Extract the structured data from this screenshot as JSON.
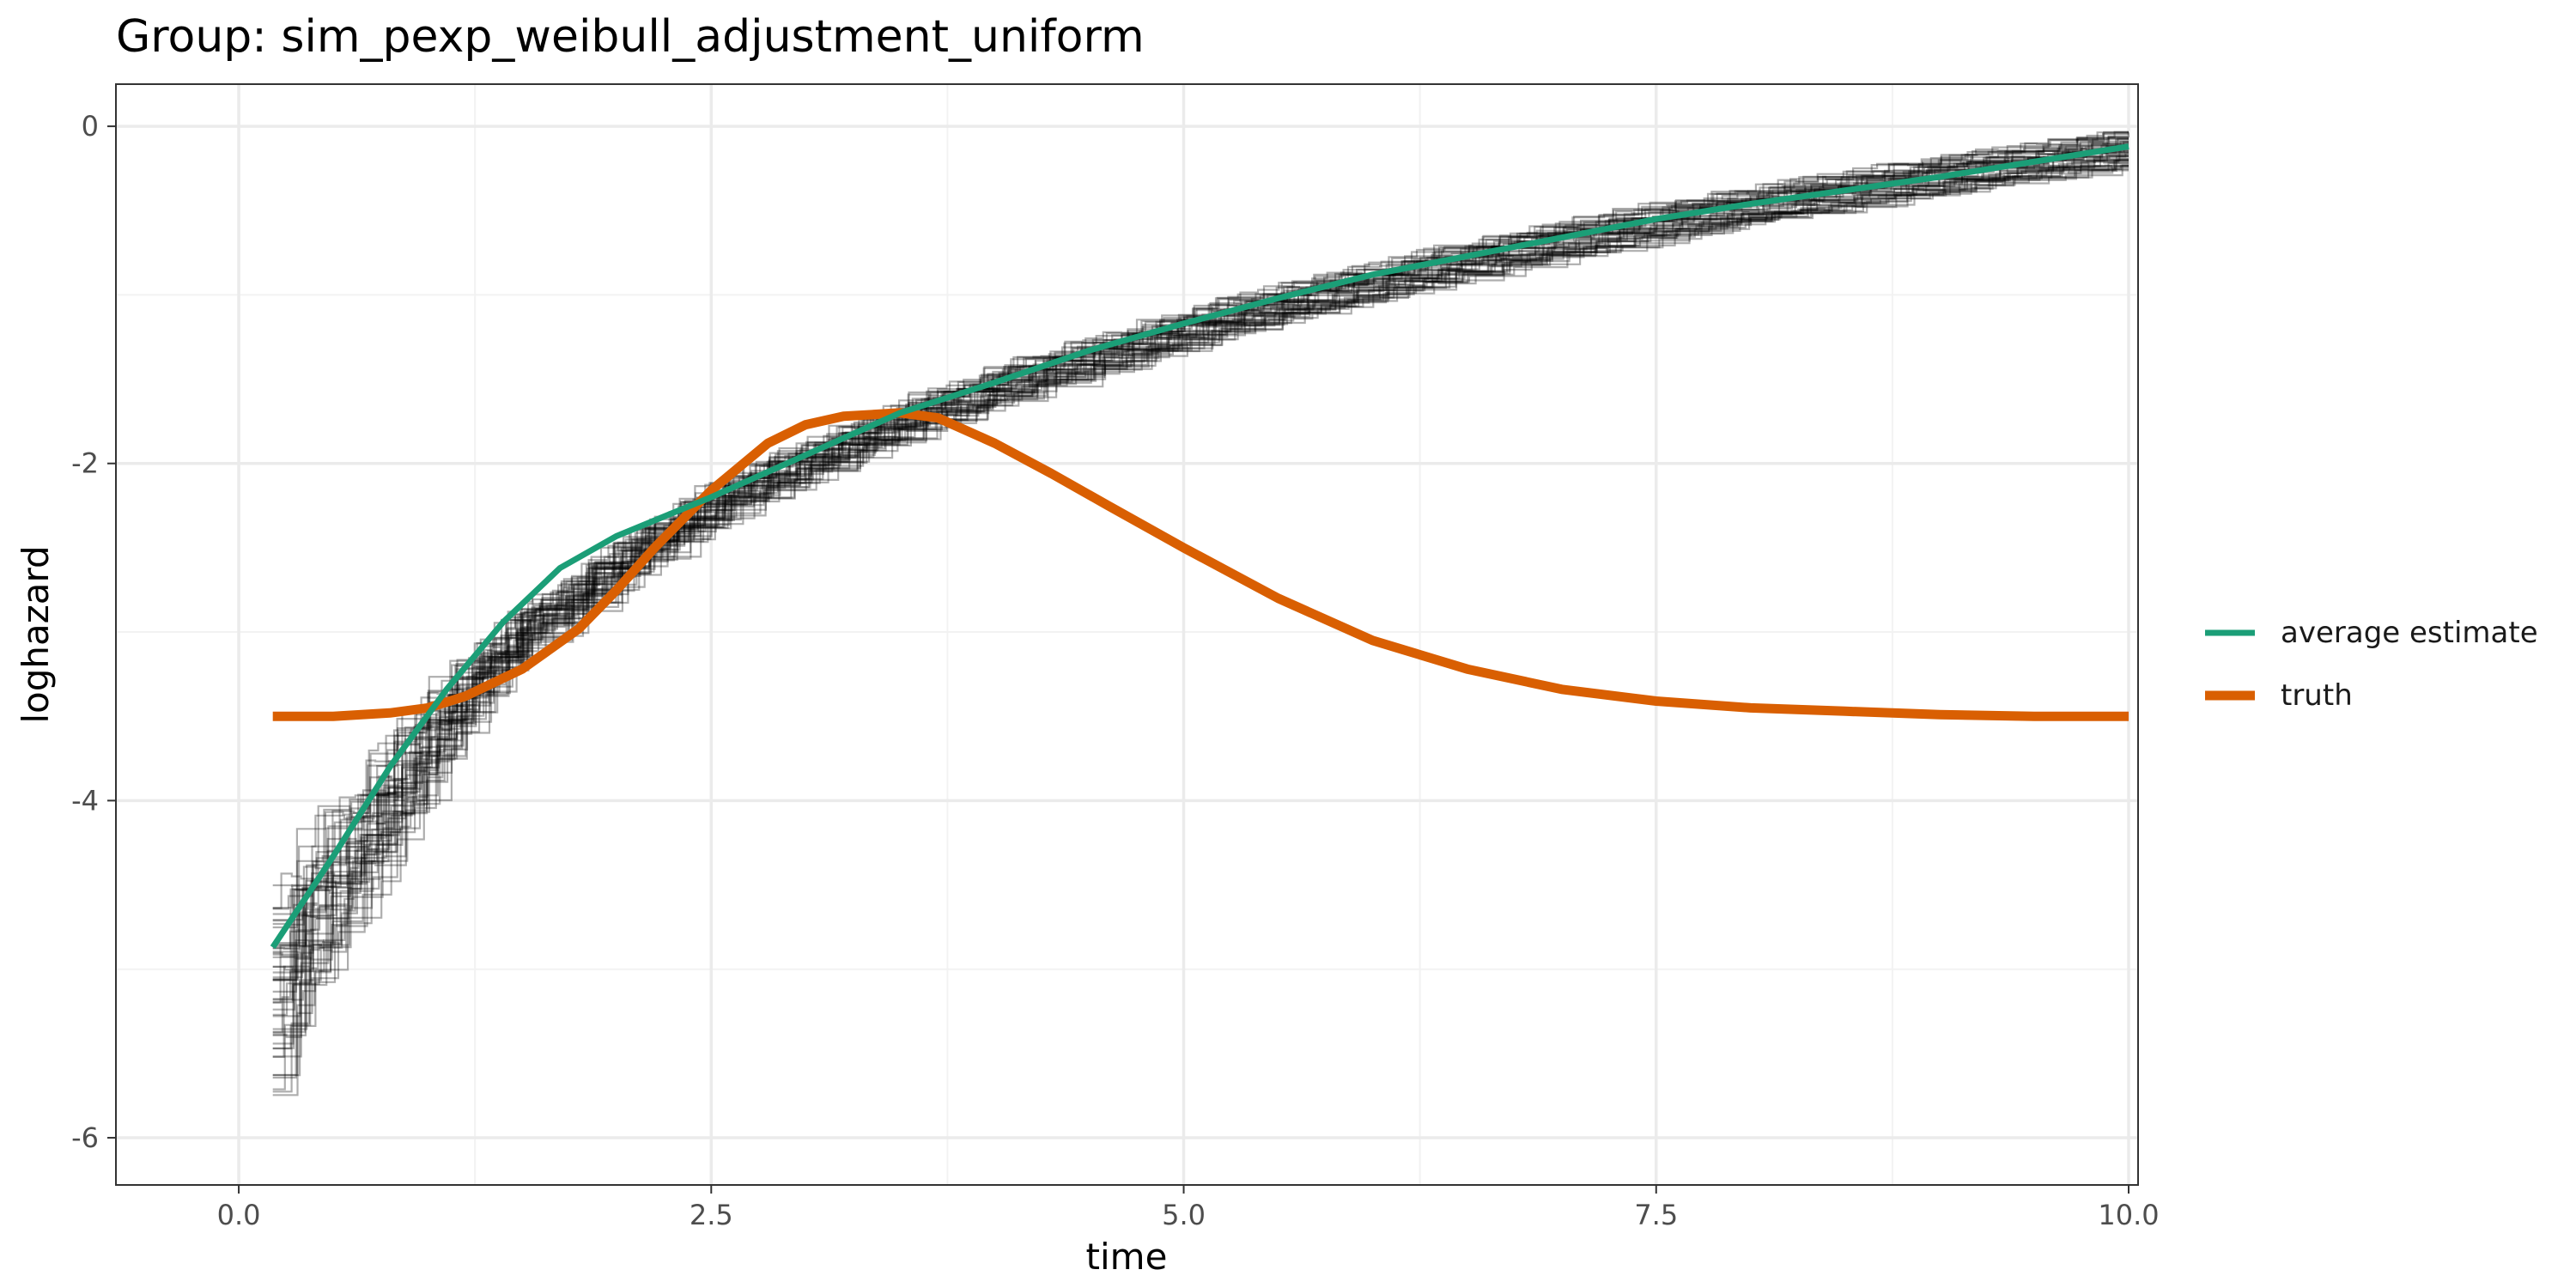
{
  "chart_data": {
    "type": "line",
    "title": "Group: sim_pexp_weibull_adjustment_uniform",
    "xlabel": "time",
    "ylabel": "loghazard",
    "xlim": [
      -0.65,
      10.05
    ],
    "ylim": [
      -6.28,
      0.25
    ],
    "x_ticks": [
      0,
      2.5,
      5,
      7.5,
      10
    ],
    "x_tick_labels": [
      "0.0",
      "2.5",
      "5.0",
      "7.5",
      "10.0"
    ],
    "y_ticks": [
      0,
      -2,
      -4,
      -6
    ],
    "y_tick_labels": [
      "0",
      "-2",
      "-4",
      "-6"
    ],
    "grid": true,
    "legend_position": "right",
    "colors": {
      "average_estimate": "#1b9e77",
      "truth": "#d95f02",
      "replicate_estimates": "#000000",
      "panel_border": "#333333",
      "grid_major": "#ebebeb"
    },
    "background_layer": {
      "description_key": "replicate_estimates",
      "render": "stepped",
      "count": 50,
      "opacity": 0.32,
      "mean_x": [
        0.18,
        0.4,
        0.6,
        0.8,
        1.0,
        1.25,
        1.5,
        1.75,
        2.0,
        2.5,
        3.0,
        3.5,
        4.0,
        5.0,
        6.0,
        7.0,
        8.0,
        9.0,
        10.0
      ],
      "mean_y": [
        -5.05,
        -4.6,
        -4.3,
        -3.95,
        -3.6,
        -3.25,
        -2.95,
        -2.75,
        -2.55,
        -2.2,
        -1.95,
        -1.72,
        -1.52,
        -1.18,
        -0.9,
        -0.66,
        -0.46,
        -0.28,
        -0.12
      ]
    },
    "series": [
      {
        "name": "average estimate",
        "x": [
          0.18,
          0.5,
          0.8,
          1.1,
          1.4,
          1.7,
          2.0,
          2.5,
          3.0,
          3.5,
          4.0,
          4.5,
          5.0,
          5.5,
          6.0,
          6.5,
          7.0,
          7.5,
          8.0,
          8.5,
          9.0,
          9.5,
          10.0
        ],
        "y": [
          -4.87,
          -4.33,
          -3.8,
          -3.34,
          -2.94,
          -2.62,
          -2.43,
          -2.2,
          -1.95,
          -1.7,
          -1.52,
          -1.33,
          -1.17,
          -1.02,
          -0.88,
          -0.77,
          -0.66,
          -0.55,
          -0.46,
          -0.38,
          -0.3,
          -0.21,
          -0.12
        ]
      },
      {
        "name": "truth",
        "x": [
          0.18,
          0.5,
          0.8,
          1.0,
          1.2,
          1.5,
          1.8,
          2.0,
          2.2,
          2.5,
          2.8,
          3.0,
          3.2,
          3.5,
          3.7,
          4.0,
          4.3,
          4.6,
          5.0,
          5.5,
          6.0,
          6.5,
          7.0,
          7.5,
          8.0,
          8.5,
          9.0,
          9.5,
          10.0
        ],
        "y": [
          -3.5,
          -3.5,
          -3.48,
          -3.45,
          -3.38,
          -3.22,
          -2.98,
          -2.75,
          -2.5,
          -2.16,
          -1.88,
          -1.77,
          -1.72,
          -1.7,
          -1.73,
          -1.88,
          -2.06,
          -2.25,
          -2.5,
          -2.8,
          -3.05,
          -3.22,
          -3.34,
          -3.41,
          -3.45,
          -3.47,
          -3.49,
          -3.5,
          -3.5
        ]
      }
    ]
  }
}
